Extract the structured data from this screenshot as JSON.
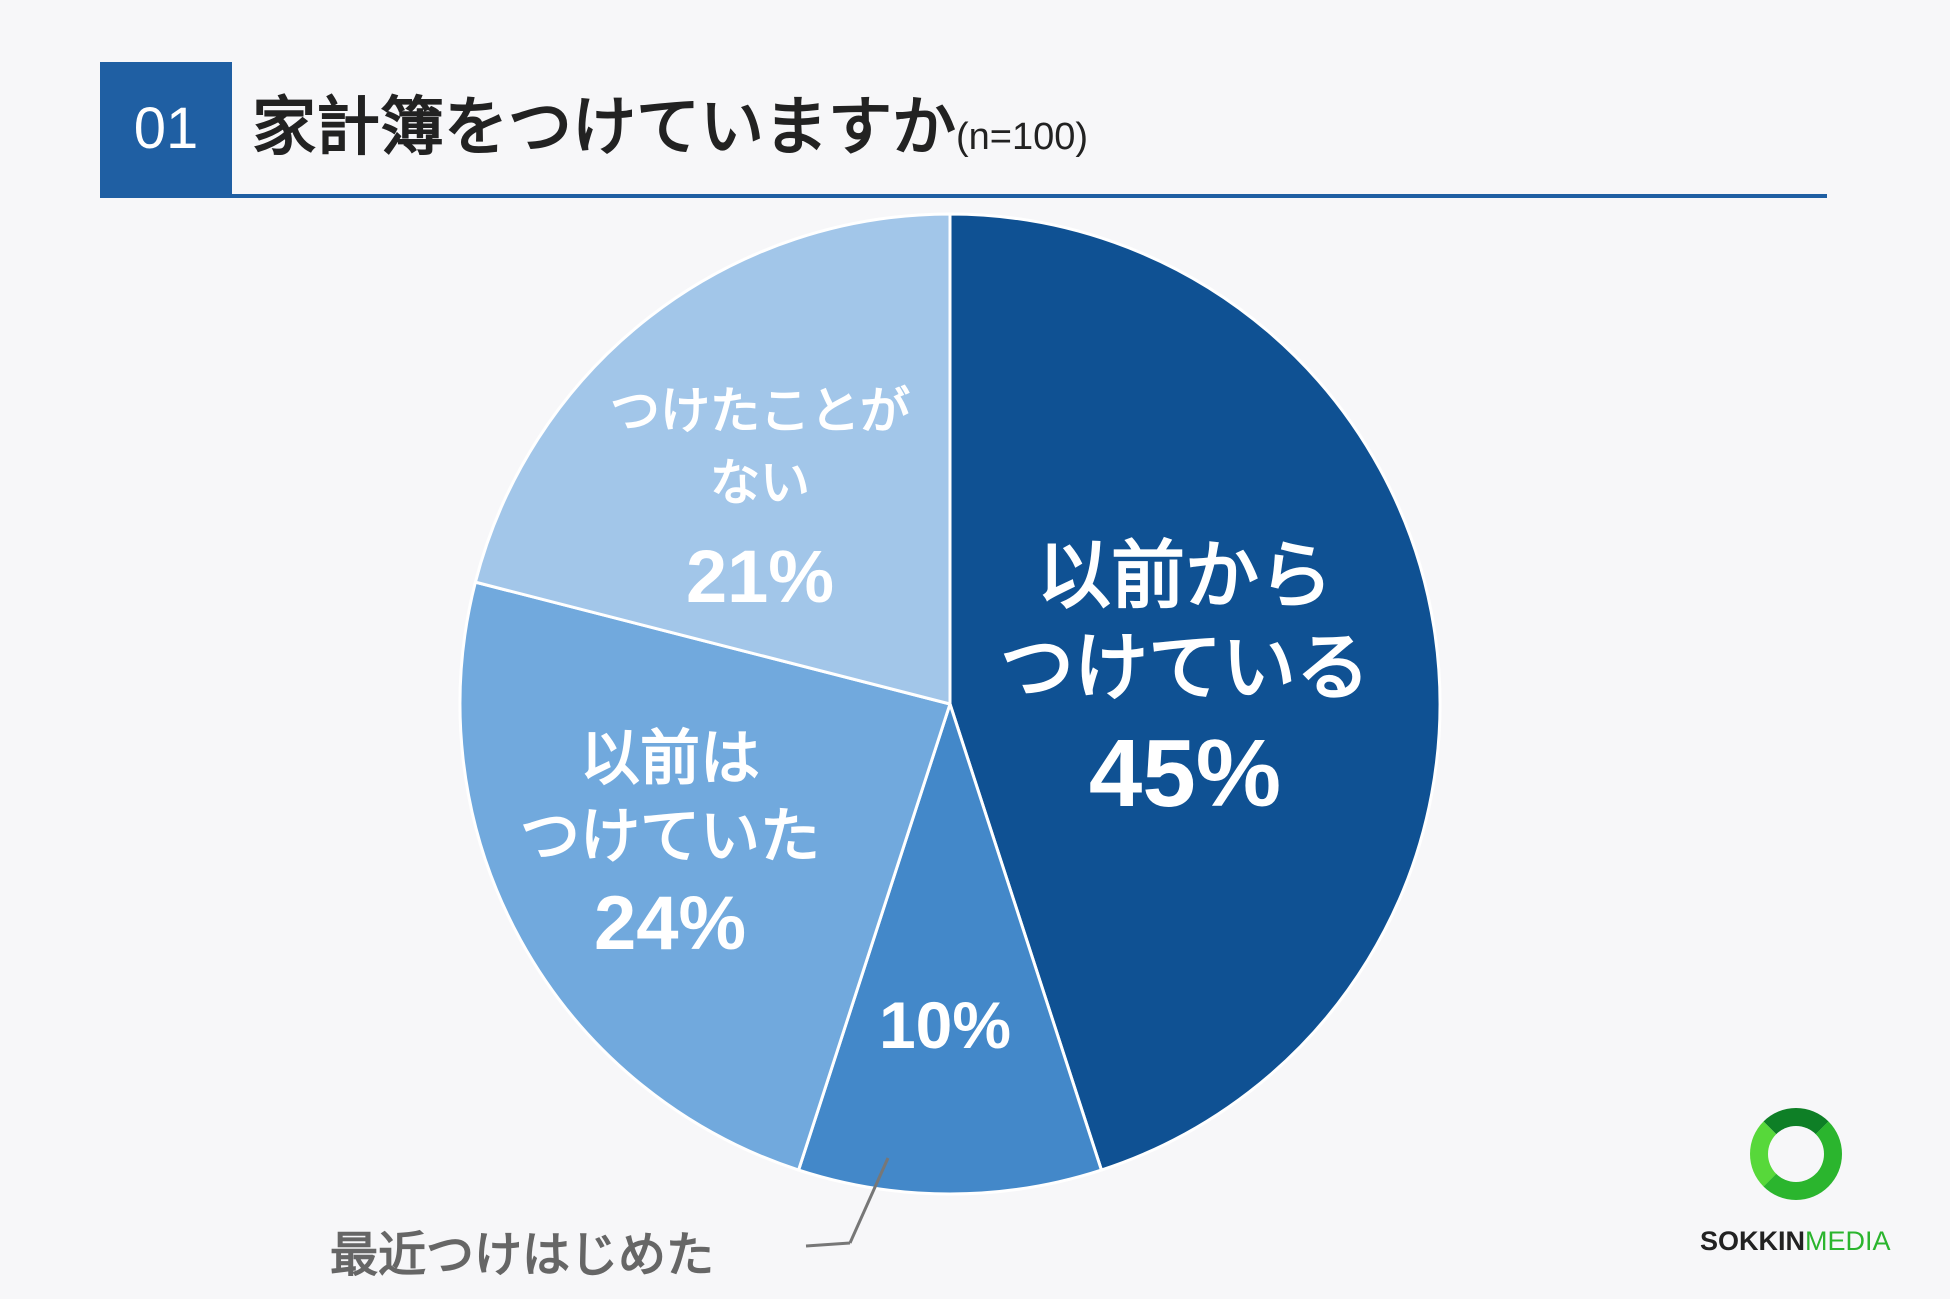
{
  "header": {
    "number": "01",
    "title": "家計簿をつけていますか",
    "subtitle": "(n=100)"
  },
  "colors": {
    "accent": "#1f5fa3",
    "slices": [
      "#0f5193",
      "#4388c9",
      "#71a9dd",
      "#a2c6e9"
    ],
    "callout": "#666666",
    "logo_green": "#2bb52e"
  },
  "chart_data": {
    "type": "pie",
    "title": "家計簿をつけていますか",
    "subtitle": "(n=100)",
    "start_angle_deg": 0,
    "direction": "clockwise",
    "slices": [
      {
        "label_lines": [
          "以前から",
          "つけている"
        ],
        "value": 45,
        "value_label": "45%"
      },
      {
        "label_lines": [],
        "value": 10,
        "value_label": "10%",
        "callout": "最近つけはじめた"
      },
      {
        "label_lines": [
          "以前は",
          "つけていた"
        ],
        "value": 24,
        "value_label": "24%"
      },
      {
        "label_lines": [
          "つけたことが",
          "ない"
        ],
        "value": 21,
        "value_label": "21%"
      }
    ]
  },
  "logo": {
    "brand": "SOKKIN",
    "suffix": "MEDIA"
  }
}
